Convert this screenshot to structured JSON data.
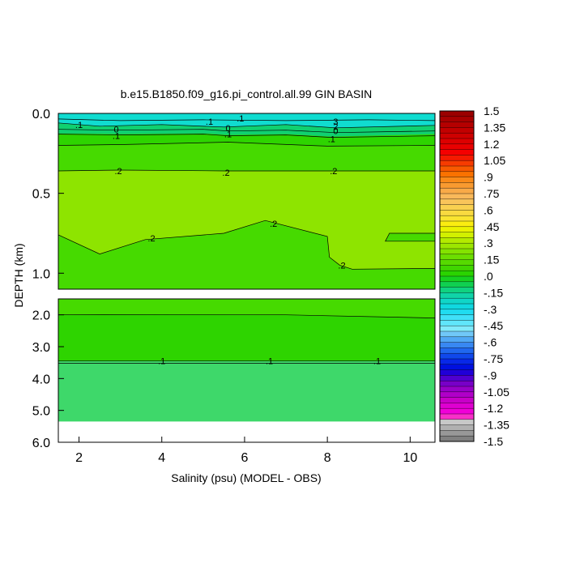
{
  "chart_data": {
    "type": "heatmap",
    "title": "b.e15.B1850.f09_g16.pi_control.all.99 GIN BASIN",
    "xlabel": "Salinity (psu) (MODEL - OBS)",
    "ylabel": "DEPTH (km)",
    "x_ticks": [
      "2",
      "4",
      "6",
      "8",
      "10"
    ],
    "x_tick_values": [
      2,
      4,
      6,
      8,
      10
    ],
    "xlim": [
      1.5,
      10.6
    ],
    "upper_panel": {
      "ylim": [
        0.0,
        1.1
      ],
      "y_ticks": [
        "0.0",
        "0.5",
        "1.0"
      ],
      "y_tick_values": [
        0.0,
        0.5,
        1.0
      ]
    },
    "lower_panel": {
      "ylim": [
        1.5,
        6.0
      ],
      "y_ticks": [
        "2.0",
        "3.0",
        "4.0",
        "5.0",
        "6.0"
      ],
      "y_tick_values": [
        2.0,
        3.0,
        4.0,
        5.0,
        6.0
      ],
      "bottom_depth": 5.35
    },
    "colorbar": {
      "labels": [
        "1.5",
        "1.35",
        "1.2",
        "1.05",
        ".9",
        ".75",
        ".6",
        ".45",
        ".3",
        ".15",
        ".0",
        "-.15",
        "-.3",
        "-.45",
        "-.6",
        "-.75",
        "-.9",
        "-1.05",
        "-1.2",
        "-1.35",
        "-1.5"
      ],
      "colors": [
        "#9b0000",
        "#a80000",
        "#b40000",
        "#c20000",
        "#ce0000",
        "#dc0000",
        "#e90000",
        "#f50000",
        "#f51a00",
        "#f73b00",
        "#f85a00",
        "#fa7200",
        "#fa8a18",
        "#f99a30",
        "#f9aa48",
        "#f9b95a",
        "#f9c45a",
        "#f9d050",
        "#f9da40",
        "#f9e430",
        "#fbed10",
        "#eaf200",
        "#d2f000",
        "#b4ea00",
        "#9ce600",
        "#84e200",
        "#6cde00",
        "#56da00",
        "#40d600",
        "#2ad400",
        "#16d220",
        "#10d050",
        "#10d280",
        "#10d4a8",
        "#10d6c8",
        "#10d8e0",
        "#20dcf0",
        "#40e0f8",
        "#60e6fb",
        "#80eafb",
        "#70c8f8",
        "#50a8f5",
        "#3888f2",
        "#2068ef",
        "#1048ec",
        "#0828e8",
        "#0010e0",
        "#2000d8",
        "#5000d0",
        "#7800c8",
        "#9800c8",
        "#b000c8",
        "#c800c8",
        "#de00d0",
        "#f000d8",
        "#f830c8",
        "#c8c8c8",
        "#b0b0b0",
        "#989898",
        "#808080"
      ]
    },
    "fill_colors": {
      "surface_cyan": "#10dcd0",
      "teal": "#10d070",
      "bright_green": "#46da00",
      "yellow_green": "#8ee400",
      "deep_green": "#2ed400",
      "bottom_green": "#3ed86a"
    },
    "contour_labels": [
      {
        "text": ".1",
        "x": 2.0,
        "y": 0.07
      },
      {
        "text": "0",
        "x": 2.9,
        "y": 0.1
      },
      {
        "text": ".1",
        "x": 2.9,
        "y": 0.14
      },
      {
        "text": ".1",
        "x": 5.15,
        "y": 0.05
      },
      {
        "text": ".1",
        "x": 5.9,
        "y": 0.03
      },
      {
        "text": "0",
        "x": 5.6,
        "y": 0.09
      },
      {
        "text": ".1",
        "x": 5.6,
        "y": 0.13
      },
      {
        "text": "3",
        "x": 8.2,
        "y": 0.05
      },
      {
        "text": "2",
        "x": 8.2,
        "y": 0.08
      },
      {
        "text": "0",
        "x": 8.2,
        "y": 0.11
      },
      {
        "text": ".1",
        "x": 8.1,
        "y": 0.16
      },
      {
        "text": ".2",
        "x": 2.95,
        "y": 0.36
      },
      {
        "text": ".2",
        "x": 5.55,
        "y": 0.37
      },
      {
        "text": ".2",
        "x": 8.15,
        "y": 0.36
      },
      {
        "text": ".2",
        "x": 6.7,
        "y": 0.69
      },
      {
        "text": ".2",
        "x": 3.75,
        "y": 0.78
      },
      {
        "text": ".2",
        "x": 8.35,
        "y": 0.95
      },
      {
        "text": ".1",
        "x": 4.0,
        "y": 3.45
      },
      {
        "text": ".1",
        "x": 6.6,
        "y": 3.45
      },
      {
        "text": ".1",
        "x": 9.2,
        "y": 3.45
      }
    ],
    "contour_lines": [
      {
        "level": "0.05",
        "points": [
          [
            1.5,
            0.035
          ],
          [
            3,
            0.045
          ],
          [
            5,
            0.04
          ],
          [
            7,
            0.045
          ],
          [
            9,
            0.04
          ],
          [
            10.6,
            0.045
          ]
        ]
      },
      {
        "level": "0.0",
        "points": [
          [
            1.5,
            0.06
          ],
          [
            2.5,
            0.08
          ],
          [
            4,
            0.07
          ],
          [
            5.5,
            0.085
          ],
          [
            7,
            0.07
          ],
          [
            8.2,
            0.09
          ],
          [
            10.6,
            0.075
          ]
        ]
      },
      {
        "level": "0.08",
        "points": [
          [
            1.5,
            0.1
          ],
          [
            3,
            0.105
          ],
          [
            5,
            0.1
          ],
          [
            5.6,
            0.11
          ],
          [
            7,
            0.105
          ],
          [
            8.2,
            0.12
          ],
          [
            10.6,
            0.11
          ]
        ]
      },
      {
        "level": "0.1",
        "points": [
          [
            1.5,
            0.13
          ],
          [
            3,
            0.135
          ],
          [
            5,
            0.13
          ],
          [
            5.6,
            0.14
          ],
          [
            7,
            0.135
          ],
          [
            8.1,
            0.15
          ],
          [
            10.6,
            0.14
          ]
        ]
      },
      {
        "level": "0.15",
        "points": [
          [
            1.5,
            0.2
          ],
          [
            3,
            0.195
          ],
          [
            5.6,
            0.18
          ],
          [
            8,
            0.205
          ],
          [
            10.6,
            0.2
          ]
        ]
      },
      {
        "level": "0.2",
        "points": [
          [
            1.5,
            0.36
          ],
          [
            3,
            0.355
          ],
          [
            5.5,
            0.36
          ],
          [
            8.1,
            0.36
          ],
          [
            10.6,
            0.36
          ]
        ]
      },
      {
        "level": "0.2b",
        "points": [
          [
            1.5,
            0.76
          ],
          [
            2.5,
            0.88
          ],
          [
            3.6,
            0.79
          ],
          [
            5.5,
            0.75
          ],
          [
            6.5,
            0.67
          ],
          [
            8.0,
            0.77
          ],
          [
            8.05,
            0.9
          ],
          [
            8.3,
            0.95
          ],
          [
            8.6,
            0.975
          ],
          [
            10.6,
            0.97
          ]
        ]
      },
      {
        "level": "0.2c",
        "points": [
          [
            10.6,
            0.75
          ],
          [
            9.5,
            0.75
          ],
          [
            9.4,
            0.8
          ],
          [
            10.6,
            0.8
          ]
        ]
      },
      {
        "level": "0.15b",
        "points": [
          [
            1.5,
            2.0
          ],
          [
            4,
            1.99
          ],
          [
            7,
            2.0
          ],
          [
            10.6,
            2.1
          ]
        ]
      },
      {
        "level": "0.1b",
        "points": [
          [
            1.5,
            3.45
          ],
          [
            10.6,
            3.45
          ]
        ]
      },
      {
        "level": "0.1c",
        "points": [
          [
            1.5,
            3.52
          ],
          [
            10.6,
            3.52
          ]
        ]
      }
    ]
  }
}
